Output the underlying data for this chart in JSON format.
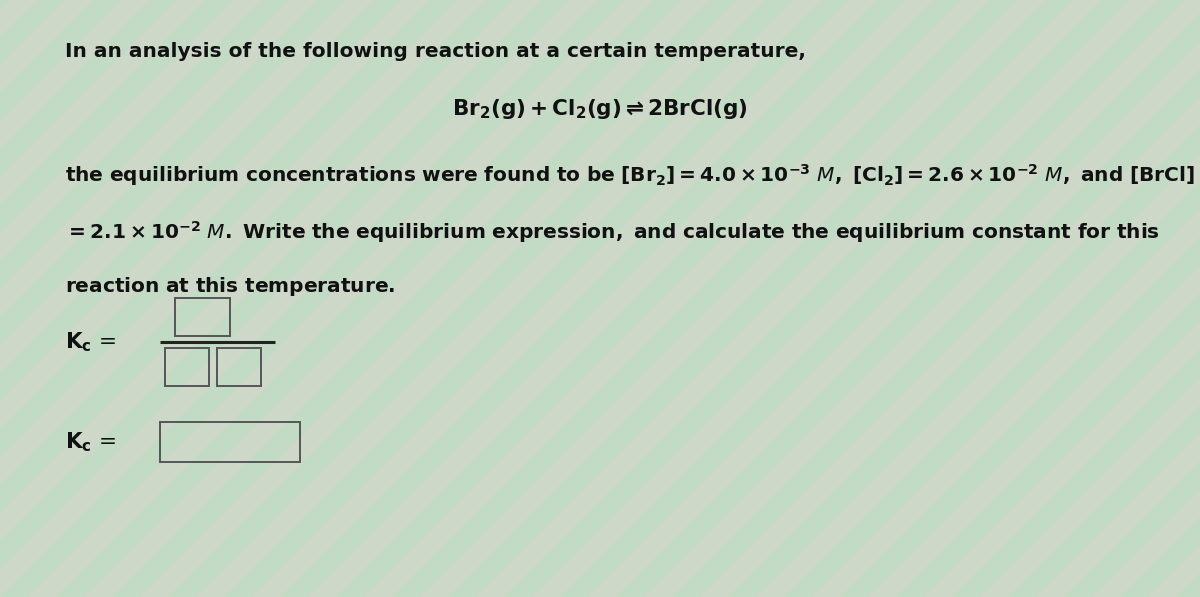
{
  "bg_color": "#c8dcc8",
  "text_color": "#111111",
  "font_size_body": 14.5,
  "font_size_reaction": 15.5,
  "box_color": "#444444",
  "fig_width": 12.0,
  "fig_height": 5.97
}
